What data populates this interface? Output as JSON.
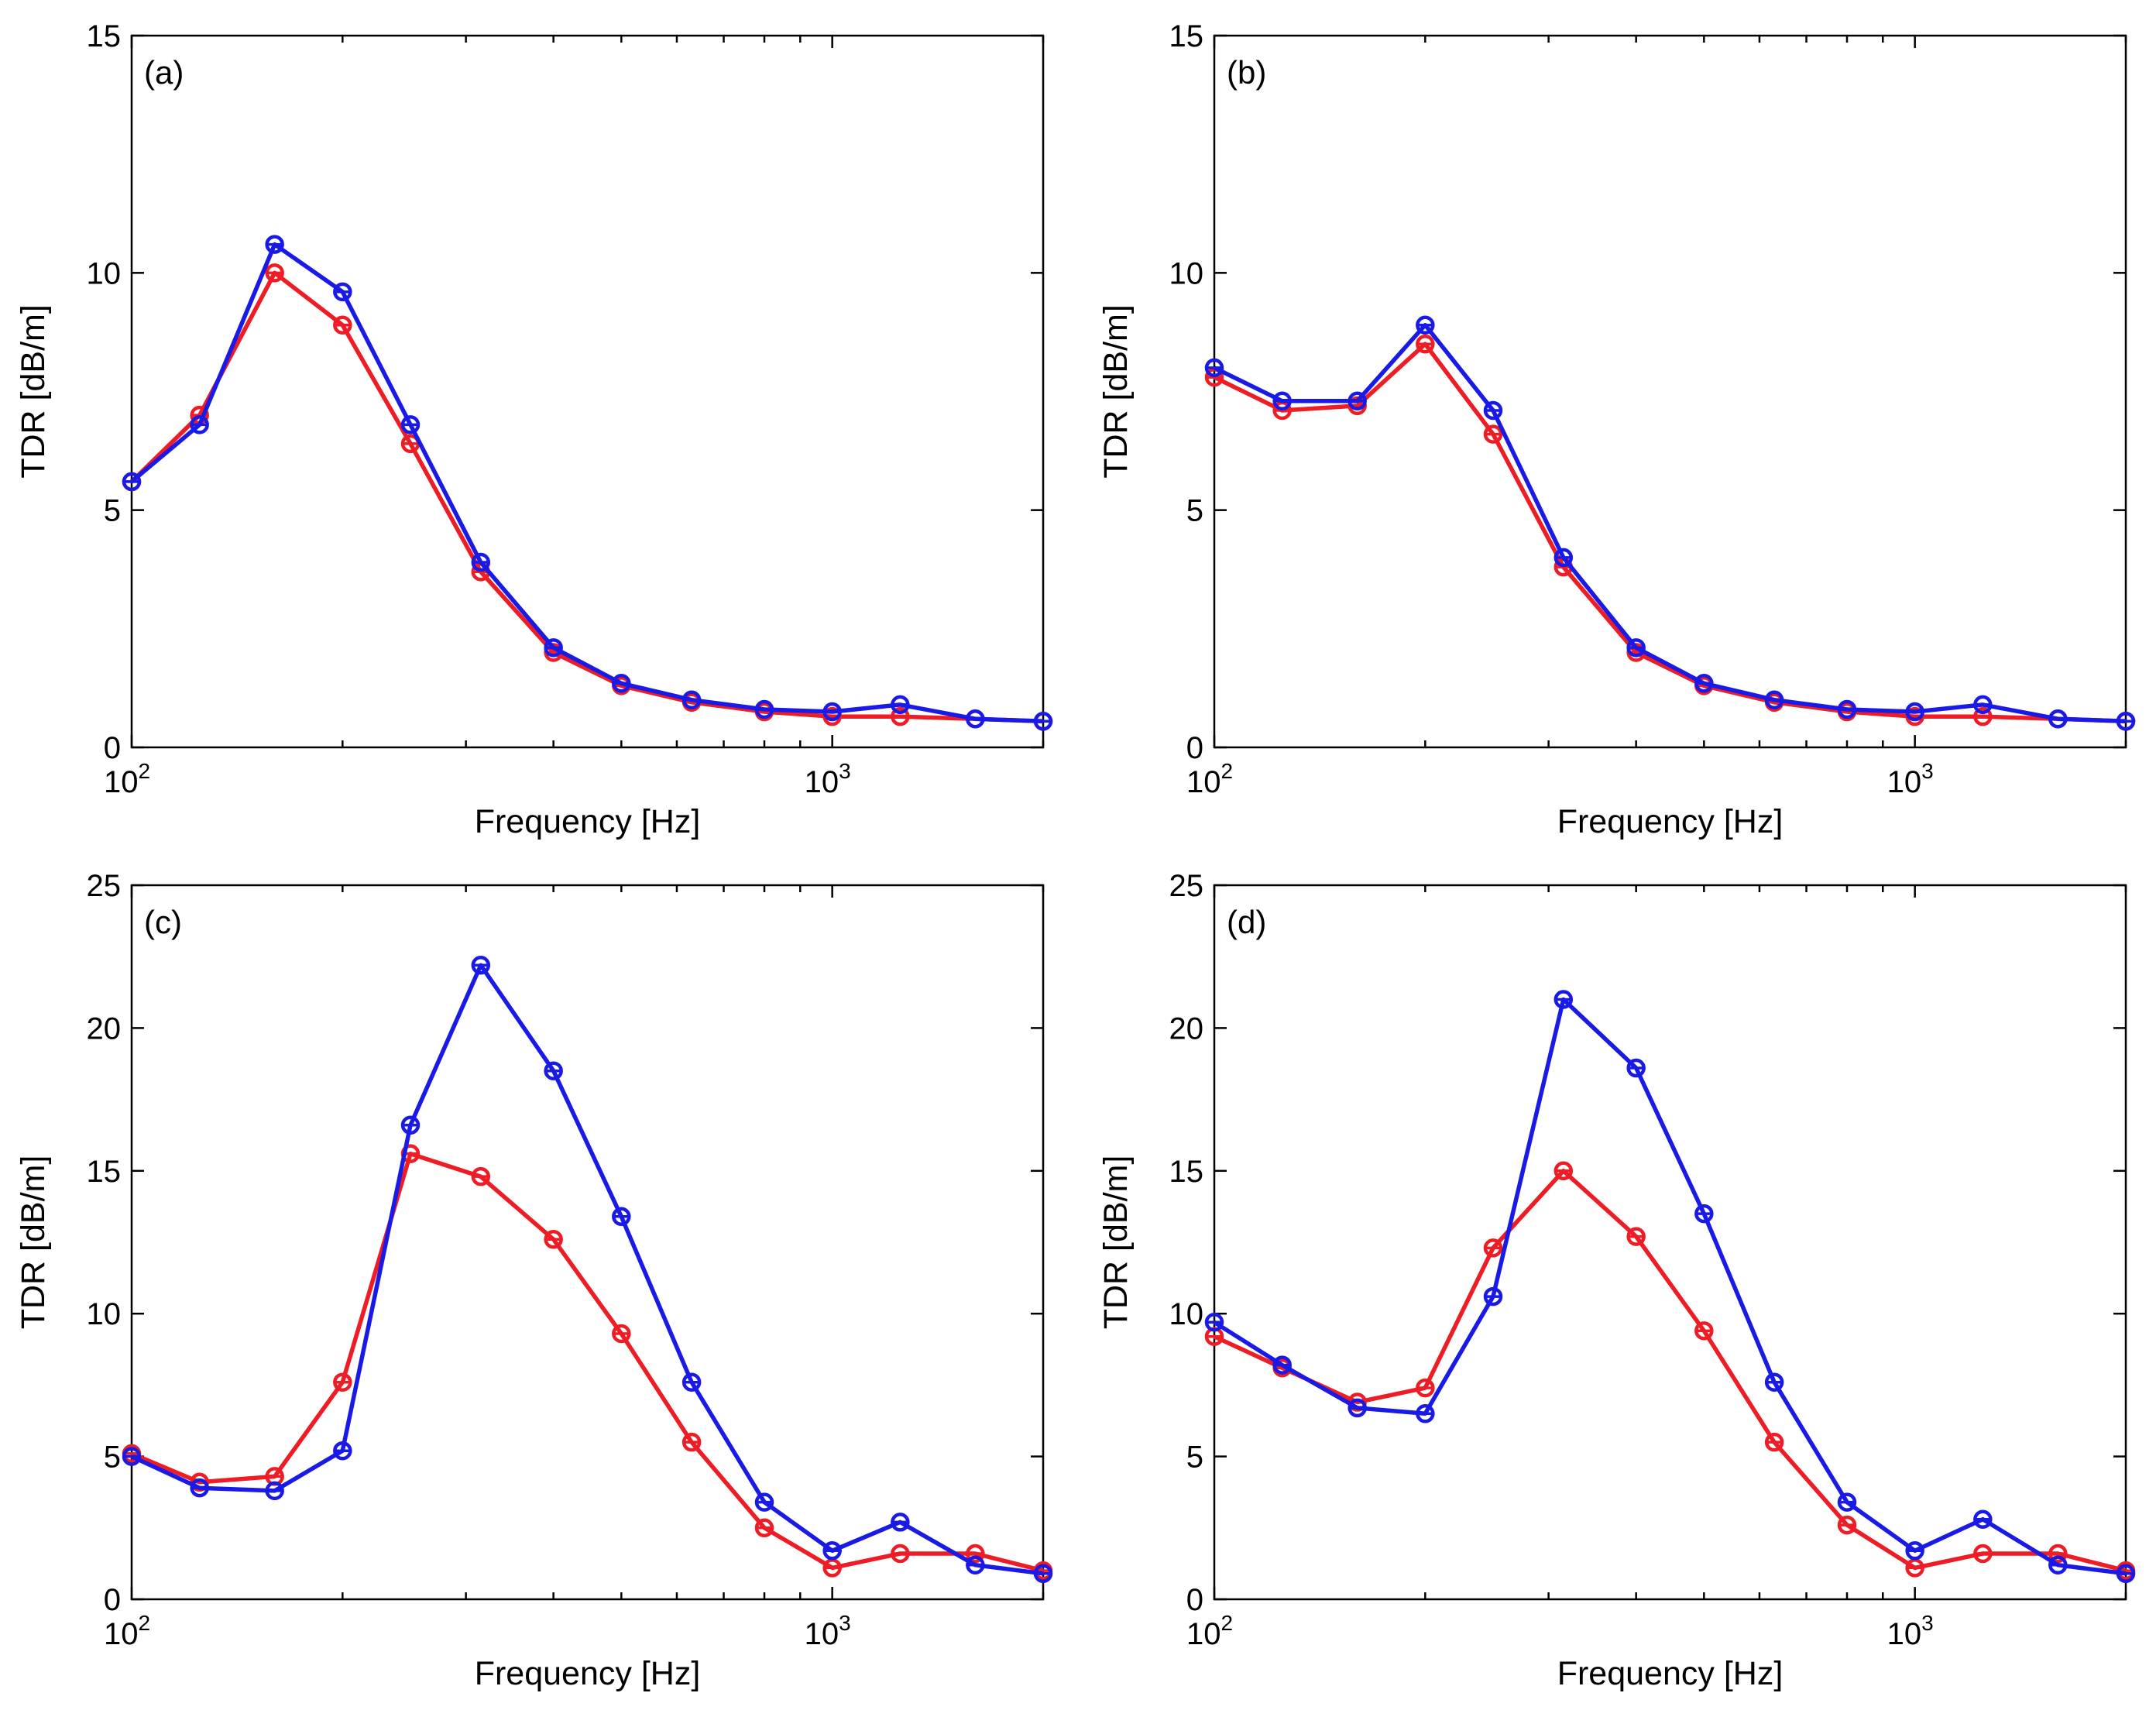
{
  "colors": {
    "red": "#ee1c24",
    "blue": "#1a1ae6",
    "axis": "#000000"
  },
  "chart_data": [
    {
      "type": "line",
      "panel_label": "(a)",
      "xscale": "log",
      "xlim": [
        100,
        2000
      ],
      "ylim": [
        0,
        15
      ],
      "yticks": [
        0,
        5,
        10,
        15
      ],
      "ytick_labels": [
        "0",
        "5",
        "10",
        "15"
      ],
      "xlabel": "Frequency [Hz]",
      "ylabel": "TDR [dB/m]",
      "x": [
        100,
        125,
        160,
        200,
        250,
        315,
        400,
        500,
        630,
        800,
        1000,
        1250,
        1600,
        2000
      ],
      "series": [
        {
          "name": "red",
          "color": "#ee1c24",
          "values": [
            5.6,
            7.0,
            10.0,
            8.9,
            6.4,
            3.7,
            2.0,
            1.3,
            0.95,
            0.75,
            0.65,
            0.65,
            0.6,
            0.55
          ]
        },
        {
          "name": "blue",
          "color": "#1a1ae6",
          "values": [
            5.6,
            6.8,
            10.6,
            9.6,
            6.8,
            3.9,
            2.1,
            1.35,
            1.0,
            0.8,
            0.75,
            0.9,
            0.6,
            0.55
          ]
        }
      ]
    },
    {
      "type": "line",
      "panel_label": "(b)",
      "xscale": "log",
      "xlim": [
        100,
        2000
      ],
      "ylim": [
        0,
        15
      ],
      "yticks": [
        0,
        5,
        10,
        15
      ],
      "ytick_labels": [
        "0",
        "5",
        "10",
        "15"
      ],
      "xlabel": "Frequency [Hz]",
      "ylabel": "TDR [dB/m]",
      "x": [
        100,
        125,
        160,
        200,
        250,
        315,
        400,
        500,
        630,
        800,
        1000,
        1250,
        1600,
        2000
      ],
      "series": [
        {
          "name": "red",
          "color": "#ee1c24",
          "values": [
            7.8,
            7.1,
            7.2,
            8.5,
            6.6,
            3.8,
            2.0,
            1.3,
            0.95,
            0.75,
            0.65,
            0.65,
            0.6,
            0.55
          ]
        },
        {
          "name": "blue",
          "color": "#1a1ae6",
          "values": [
            8.0,
            7.3,
            7.3,
            8.9,
            7.1,
            4.0,
            2.1,
            1.35,
            1.0,
            0.8,
            0.75,
            0.9,
            0.6,
            0.55
          ]
        }
      ]
    },
    {
      "type": "line",
      "panel_label": "(c)",
      "xscale": "log",
      "xlim": [
        100,
        2000
      ],
      "ylim": [
        0,
        25
      ],
      "yticks": [
        0,
        5,
        10,
        15,
        20,
        25
      ],
      "ytick_labels": [
        "0",
        "5",
        "10",
        "15",
        "20",
        "25"
      ],
      "xlabel": "Frequency [Hz]",
      "ylabel": "TDR [dB/m]",
      "x": [
        100,
        125,
        160,
        200,
        250,
        315,
        400,
        500,
        630,
        800,
        1000,
        1250,
        1600,
        2000
      ],
      "series": [
        {
          "name": "red",
          "color": "#ee1c24",
          "values": [
            5.1,
            4.1,
            4.3,
            7.6,
            15.6,
            14.8,
            12.6,
            9.3,
            5.5,
            2.5,
            1.1,
            1.6,
            1.6,
            1.0
          ]
        },
        {
          "name": "blue",
          "color": "#1a1ae6",
          "values": [
            5.0,
            3.9,
            3.8,
            5.2,
            16.6,
            22.2,
            18.5,
            13.4,
            7.6,
            3.4,
            1.7,
            2.7,
            1.2,
            0.9
          ]
        }
      ]
    },
    {
      "type": "line",
      "panel_label": "(d)",
      "xscale": "log",
      "xlim": [
        100,
        2000
      ],
      "ylim": [
        0,
        25
      ],
      "yticks": [
        0,
        5,
        10,
        15,
        20,
        25
      ],
      "ytick_labels": [
        "0",
        "5",
        "10",
        "15",
        "20",
        "25"
      ],
      "xlabel": "Frequency [Hz]",
      "ylabel": "TDR [dB/m]",
      "x": [
        100,
        125,
        160,
        200,
        250,
        315,
        400,
        500,
        630,
        800,
        1000,
        1250,
        1600,
        2000
      ],
      "series": [
        {
          "name": "red",
          "color": "#ee1c24",
          "values": [
            9.2,
            8.1,
            6.9,
            7.4,
            12.3,
            15.0,
            12.7,
            9.4,
            5.5,
            2.6,
            1.1,
            1.6,
            1.6,
            1.0
          ]
        },
        {
          "name": "blue",
          "color": "#1a1ae6",
          "values": [
            9.7,
            8.2,
            6.7,
            6.5,
            10.6,
            21.0,
            18.6,
            13.5,
            7.6,
            3.4,
            1.7,
            2.8,
            1.2,
            0.9
          ]
        }
      ]
    }
  ],
  "xtick_base": "10",
  "xtick_exponents": [
    "2",
    "3"
  ]
}
